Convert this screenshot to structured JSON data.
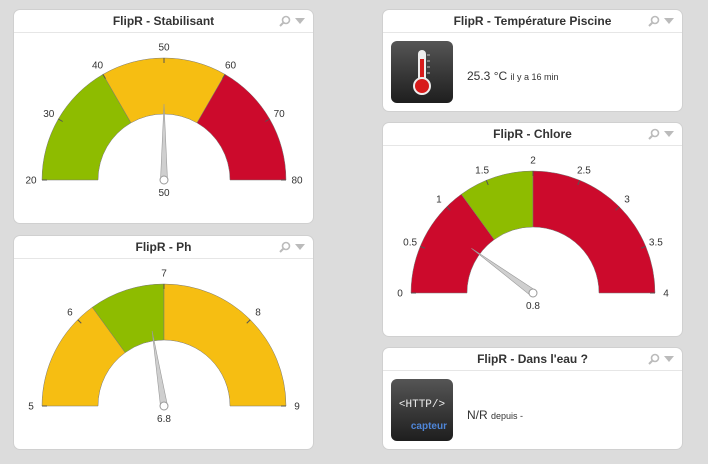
{
  "colors": {
    "green": "#8ebc00",
    "yellow": "#f6be12",
    "red": "#cc0a2c",
    "needle": "#cfcfcf"
  },
  "widgets": {
    "stabilisant": {
      "title": "FlipR - Stabilisant",
      "value_label": "50",
      "gauge": {
        "min": 20,
        "max": 80,
        "value": 50,
        "ticks": [
          "20",
          "30",
          "40",
          "50",
          "60",
          "70",
          "80"
        ],
        "bands": [
          {
            "from": 20,
            "to": 40,
            "color": "green"
          },
          {
            "from": 40,
            "to": 60,
            "color": "yellow"
          },
          {
            "from": 60,
            "to": 80,
            "color": "red"
          }
        ]
      }
    },
    "ph": {
      "title": "FlipR - Ph",
      "value_label": "6.8",
      "gauge": {
        "min": 5,
        "max": 9,
        "value": 6.8,
        "ticks": [
          "5",
          "6",
          "7",
          "8",
          "9"
        ],
        "bands": [
          {
            "from": 5,
            "to": 6.2,
            "color": "yellow"
          },
          {
            "from": 6.2,
            "to": 7,
            "color": "green"
          },
          {
            "from": 7,
            "to": 9,
            "color": "yellow"
          }
        ]
      }
    },
    "temperature": {
      "title": "FlipR - Température Piscine",
      "icon": "thermometer-icon",
      "value": "25.3 °C",
      "since": "il y a 16 min"
    },
    "chlore": {
      "title": "FlipR - Chlore",
      "value_label": "0.8",
      "gauge": {
        "min": 0,
        "max": 4,
        "value": 0.8,
        "ticks": [
          "0",
          "0.5",
          "1",
          "1.5",
          "2",
          "2.5",
          "3",
          "3.5",
          "4"
        ],
        "bands": [
          {
            "from": 0,
            "to": 1.2,
            "color": "red"
          },
          {
            "from": 1.2,
            "to": 2,
            "color": "green"
          },
          {
            "from": 2,
            "to": 4,
            "color": "red"
          }
        ]
      }
    },
    "eau": {
      "title": "FlipR - Dans l'eau ?",
      "icon": "http-capteur-icon",
      "icon_text": "<HTTP/>",
      "icon_sub": "capteur",
      "value": "N/R",
      "since": "depuis -"
    }
  }
}
